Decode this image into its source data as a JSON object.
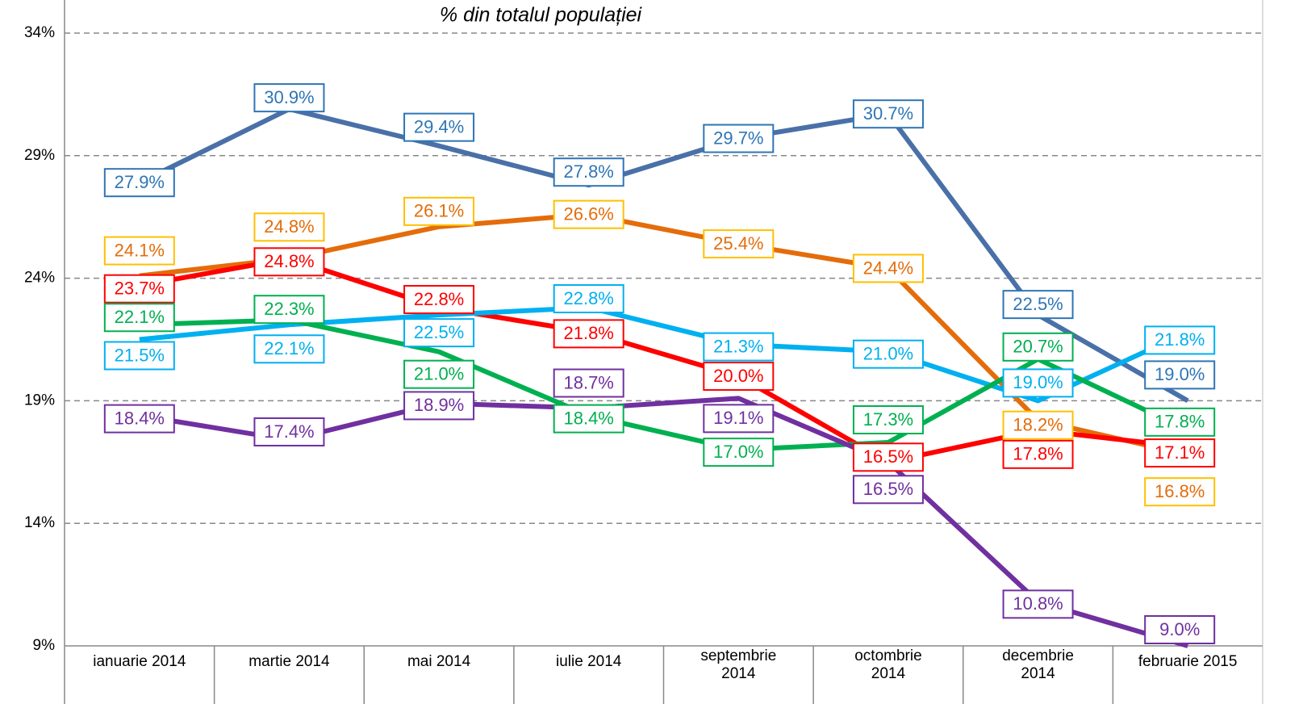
{
  "chart_data": {
    "type": "line",
    "title": "% din totalul populației",
    "categories": [
      "ianuarie 2014",
      "martie 2014",
      "mai 2014",
      "iulie 2014",
      "septembrie 2014",
      "octombrie 2014",
      "decembrie 2014",
      "februarie 2015"
    ],
    "ylim": [
      9,
      34
    ],
    "yticks": [
      {
        "value": 9,
        "label": "9%"
      },
      {
        "value": 14,
        "label": "14%"
      },
      {
        "value": 19,
        "label": "19%"
      },
      {
        "value": 24,
        "label": "24%"
      },
      {
        "value": 29,
        "label": "29%"
      },
      {
        "value": 34,
        "label": "34%"
      }
    ],
    "grid": true,
    "series": [
      {
        "color": "#4a70a8",
        "label_color": "#2e75b6",
        "border_color": "#2e75b6",
        "values": [
          27.9,
          30.9,
          29.4,
          27.8,
          29.7,
          30.7,
          22.5,
          19.0
        ],
        "value_labels": [
          "27.9%",
          "30.9%",
          "29.4%",
          "27.8%",
          "29.7%",
          "30.7%",
          "22.5%",
          "19.0%"
        ]
      },
      {
        "color": "#e46c0a",
        "label_color": "#e46c0a",
        "border_color": "#ffc000",
        "values": [
          24.1,
          24.8,
          26.1,
          26.6,
          25.4,
          24.4,
          18.2,
          16.8
        ],
        "value_labels": [
          "24.1%",
          "24.8%",
          "26.1%",
          "26.6%",
          "25.4%",
          "24.4%",
          "18.2%",
          "16.8%"
        ]
      },
      {
        "color": "#ff0000",
        "label_color": "#ff0000",
        "border_color": "#ff0000",
        "values": [
          23.7,
          24.8,
          22.8,
          21.8,
          20.0,
          16.5,
          17.8,
          17.1
        ],
        "value_labels": [
          "23.7%",
          "24.8%",
          "22.8%",
          "21.8%",
          "20.0%",
          "16.5%",
          "17.8%",
          "17.1%"
        ]
      },
      {
        "color": "#00b0f0",
        "label_color": "#00b0f0",
        "border_color": "#00b0f0",
        "values": [
          21.5,
          22.1,
          22.5,
          22.8,
          21.3,
          21.0,
          19.0,
          21.8
        ],
        "value_labels": [
          "21.5%",
          "22.1%",
          "22.5%",
          "22.8%",
          "21.3%",
          "21.0%",
          "19.0%",
          "21.8%"
        ]
      },
      {
        "color": "#00b050",
        "label_color": "#00b050",
        "border_color": "#00b050",
        "values": [
          22.1,
          22.3,
          21.0,
          18.4,
          17.0,
          17.3,
          20.7,
          17.8
        ],
        "value_labels": [
          "22.1%",
          "22.3%",
          "21.0%",
          "18.4%",
          "17.0%",
          "17.3%",
          "20.7%",
          "17.8%"
        ]
      },
      {
        "color": "#7030a0",
        "label_color": "#7030a0",
        "border_color": "#7030a0",
        "values": [
          18.4,
          17.4,
          18.9,
          18.7,
          19.1,
          16.5,
          10.8,
          9.0
        ],
        "value_labels": [
          "18.4%",
          "17.4%",
          "18.9%",
          "18.7%",
          "19.1%",
          "16.5%",
          "10.8%",
          "9.0%"
        ]
      }
    ]
  }
}
